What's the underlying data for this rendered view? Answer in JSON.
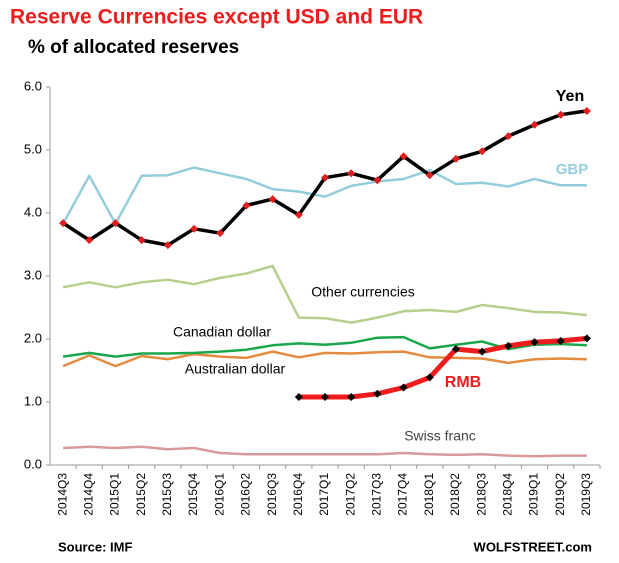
{
  "chart_data": {
    "type": "line",
    "title": "Reserve Currencies except USD and EUR",
    "subtitle": "% of allocated reserves",
    "source": "Source: IMF",
    "credit": "WOLFSTREET.com",
    "categories": [
      "2014Q3",
      "2014Q4",
      "2015Q1",
      "2015Q2",
      "2015Q3",
      "2015Q4",
      "2016Q1",
      "2016Q2",
      "2016Q3",
      "2016Q4",
      "2017Q1",
      "2017Q2",
      "2017Q3",
      "2017Q4",
      "2018Q1",
      "2018Q2",
      "2018Q3",
      "2018Q4",
      "2019Q1",
      "2019Q2",
      "2019Q3"
    ],
    "ylim": [
      0,
      6
    ],
    "yticks": [
      {
        "value": 0,
        "label": "0.0"
      },
      {
        "value": 1,
        "label": "1.0"
      },
      {
        "value": 2,
        "label": "2.0"
      },
      {
        "value": 3,
        "label": "3.0"
      },
      {
        "value": 4,
        "label": "4.0"
      },
      {
        "value": 5,
        "label": "5.0"
      },
      {
        "value": 6,
        "label": "6.0"
      }
    ],
    "grid": false,
    "series": [
      {
        "name": "Swiss franc",
        "color": "#d89a9a",
        "values": [
          0.27,
          0.29,
          0.27,
          0.29,
          0.25,
          0.27,
          0.19,
          0.17,
          0.17,
          0.17,
          0.17,
          0.17,
          0.17,
          0.19,
          0.17,
          0.16,
          0.17,
          0.15,
          0.14,
          0.15,
          0.15
        ]
      },
      {
        "name": "Australian dollar",
        "color": "#e38b3f",
        "values": [
          1.57,
          1.74,
          1.57,
          1.73,
          1.68,
          1.76,
          1.72,
          1.7,
          1.8,
          1.71,
          1.78,
          1.77,
          1.79,
          1.8,
          1.71,
          1.7,
          1.69,
          1.62,
          1.68,
          1.69,
          1.68
        ]
      },
      {
        "name": "Canadian dollar",
        "color": "#1aa64a",
        "values": [
          1.72,
          1.78,
          1.72,
          1.77,
          1.77,
          1.78,
          1.8,
          1.83,
          1.9,
          1.93,
          1.91,
          1.94,
          2.02,
          2.03,
          1.85,
          1.91,
          1.96,
          1.84,
          1.91,
          1.92,
          1.9
        ]
      },
      {
        "name": "Other currencies",
        "color": "#b5cf8d",
        "values": [
          2.82,
          2.9,
          2.82,
          2.9,
          2.94,
          2.87,
          2.97,
          3.04,
          3.16,
          2.34,
          2.33,
          2.26,
          2.34,
          2.44,
          2.46,
          2.43,
          2.54,
          2.49,
          2.43,
          2.42,
          2.38
        ]
      },
      {
        "name": "GBP",
        "color": "#93cddd",
        "values": [
          3.83,
          4.59,
          3.83,
          4.59,
          4.6,
          4.72,
          4.63,
          4.54,
          4.38,
          4.34,
          4.26,
          4.43,
          4.5,
          4.54,
          4.68,
          4.46,
          4.48,
          4.42,
          4.54,
          4.44,
          4.44
        ]
      },
      {
        "name": "RMB",
        "color": "#ee1c1c",
        "marker_color": "#000000",
        "values": [
          null,
          null,
          null,
          null,
          null,
          null,
          null,
          null,
          null,
          1.08,
          1.08,
          1.08,
          1.13,
          1.23,
          1.39,
          1.84,
          1.8,
          1.89,
          1.95,
          1.97,
          2.01
        ]
      },
      {
        "name": "Yen",
        "color": "#000000",
        "marker_color": "#e02020",
        "values": [
          3.84,
          3.57,
          3.84,
          3.57,
          3.49,
          3.75,
          3.68,
          4.12,
          4.22,
          3.97,
          4.56,
          4.63,
          4.52,
          4.9,
          4.6,
          4.86,
          4.98,
          5.22,
          5.4,
          5.56,
          5.62
        ]
      }
    ]
  }
}
